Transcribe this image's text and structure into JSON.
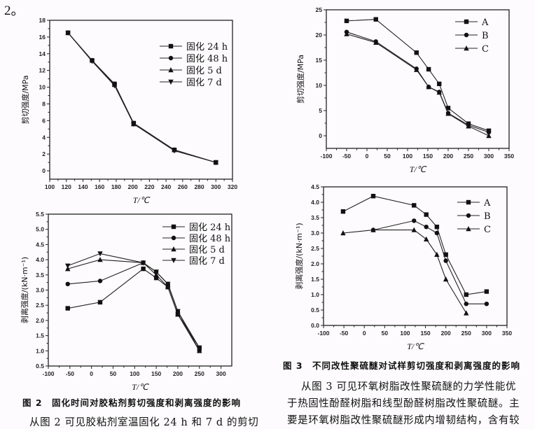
{
  "page_fragment": "2。",
  "figure2": {
    "caption": "图 2　固化时间对胶粘剂剪切强度和剥离强度的影响"
  },
  "figure3": {
    "caption": "图 3　不同改性聚硫醚对试样剪切强度和剥离强度的影响"
  },
  "body_text": {
    "left_line1": "从图 2 可见胶粘剂室温固化 24 h 和 7 d 的剪切",
    "right_line1": "从图 3 可见环氧树脂改性聚硫醚的力学性能优",
    "right_line2": "于热固性酚醛树脂和线型酚醛树脂改性聚硫醚。主",
    "right_line3": "要是环氧树脂改性聚硫醚形成内增韧结构，含有较"
  },
  "chart_data": [
    {
      "id": "fig2a",
      "type": "line",
      "title": "",
      "xlabel": "T/℃",
      "ylabel": "剪切强度/MPa",
      "xlim": [
        100,
        320
      ],
      "ylim": [
        -1,
        18
      ],
      "xticks": [
        100,
        120,
        140,
        160,
        180,
        200,
        220,
        240,
        260,
        280,
        300,
        320
      ],
      "yticks": [
        0,
        2,
        4,
        6,
        8,
        10,
        12,
        14,
        16,
        18
      ],
      "legend_position": "top-right",
      "series": [
        {
          "name": "固化 24 h",
          "marker": "square",
          "x": [
            122,
            151,
            178,
            201,
            250,
            300
          ],
          "y": [
            16.5,
            13.2,
            10.4,
            5.7,
            2.5,
            1.0
          ]
        },
        {
          "name": "固化 48 h",
          "marker": "circle",
          "x": [
            122,
            151,
            178,
            201,
            250,
            300
          ],
          "y": [
            16.5,
            13.2,
            10.3,
            5.7,
            2.5,
            1.0
          ]
        },
        {
          "name": "固化 5 d",
          "marker": "triangle-up",
          "x": [
            122,
            151,
            178,
            201,
            250,
            300
          ],
          "y": [
            16.5,
            13.2,
            10.3,
            5.6,
            2.5,
            1.0
          ]
        },
        {
          "name": "固化 7 d",
          "marker": "triangle-down",
          "x": [
            122,
            151,
            178,
            201,
            250,
            300
          ],
          "y": [
            16.5,
            13.1,
            10.2,
            5.6,
            2.4,
            1.0
          ]
        }
      ]
    },
    {
      "id": "fig2b",
      "type": "line",
      "title": "",
      "xlabel": "T/℃",
      "ylabel": "剥离强度/(kN·m⁻¹)",
      "xlim": [
        -100,
        325
      ],
      "ylim": [
        0.5,
        5.5
      ],
      "xticks": [
        -100,
        -50,
        0,
        50,
        100,
        150,
        200,
        250,
        300
      ],
      "yticks": [
        0.5,
        1.0,
        1.5,
        2.0,
        2.5,
        3.0,
        3.5,
        4.0,
        4.5,
        5.0,
        5.5
      ],
      "legend_position": "top-right",
      "series": [
        {
          "name": "固化 24 h",
          "marker": "square",
          "x": [
            -55,
            20,
            120,
            150,
            177,
            200,
            250
          ],
          "y": [
            2.4,
            2.6,
            3.7,
            3.4,
            3.1,
            2.2,
            1.1
          ]
        },
        {
          "name": "固化 48 h",
          "marker": "circle",
          "x": [
            -55,
            20,
            120,
            150,
            177,
            200,
            250
          ],
          "y": [
            3.2,
            3.3,
            3.9,
            3.6,
            3.2,
            2.3,
            1.0
          ]
        },
        {
          "name": "固化 5 d",
          "marker": "triangle-up",
          "x": [
            -55,
            20,
            120,
            150,
            177,
            200,
            250
          ],
          "y": [
            3.7,
            4.0,
            3.9,
            3.5,
            3.1,
            2.2,
            1.0
          ]
        },
        {
          "name": "固化 7 d",
          "marker": "triangle-down",
          "x": [
            -55,
            20,
            120,
            150,
            177,
            200,
            250
          ],
          "y": [
            3.8,
            4.2,
            3.9,
            3.6,
            3.2,
            2.3,
            1.1
          ]
        }
      ]
    },
    {
      "id": "fig3a",
      "type": "line",
      "title": "",
      "xlabel": "T/℃",
      "ylabel": "剪切强度/MPa",
      "xlim": [
        -100,
        350
      ],
      "ylim": [
        -2.5,
        25
      ],
      "xticks": [
        -100,
        -50,
        0,
        50,
        100,
        150,
        200,
        250,
        300,
        350
      ],
      "yticks": [
        0,
        5,
        10,
        15,
        20,
        25
      ],
      "legend_position": "top-right",
      "series": [
        {
          "name": "A",
          "marker": "square",
          "x": [
            -50,
            22,
            122,
            152,
            178,
            200,
            250,
            300
          ],
          "y": [
            22.8,
            23.1,
            16.5,
            13.2,
            10.3,
            5.5,
            2.4,
            1.0
          ]
        },
        {
          "name": "B",
          "marker": "circle",
          "x": [
            -50,
            22,
            122,
            152,
            178,
            200,
            250,
            300
          ],
          "y": [
            20.6,
            18.7,
            13.3,
            9.7,
            8.7,
            4.5,
            2.1,
            0.7
          ]
        },
        {
          "name": "C",
          "marker": "triangle-up",
          "x": [
            -50,
            22,
            122,
            152,
            178,
            200,
            250,
            300
          ],
          "y": [
            20.2,
            18.5,
            13.1,
            9.7,
            8.6,
            4.4,
            1.9,
            0.0
          ]
        }
      ]
    },
    {
      "id": "fig3b",
      "type": "line",
      "title": "",
      "xlabel": "T/℃",
      "ylabel": "剥离强度/(kN·m⁻¹)",
      "xlim": [
        -100,
        350
      ],
      "ylim": [
        0.0,
        4.5
      ],
      "xticks": [
        -100,
        -50,
        0,
        50,
        100,
        150,
        200,
        250,
        300,
        350
      ],
      "yticks": [
        0.0,
        0.5,
        1.0,
        1.5,
        2.0,
        2.5,
        3.0,
        3.5,
        4.0,
        4.5
      ],
      "legend_position": "top-right",
      "series": [
        {
          "name": "A",
          "marker": "square",
          "x": [
            -52,
            22,
            122,
            152,
            178,
            200,
            250,
            300
          ],
          "y": [
            3.7,
            4.2,
            3.9,
            3.6,
            3.2,
            2.3,
            1.0,
            1.1
          ]
        },
        {
          "name": "B",
          "marker": "circle",
          "x": [
            22,
            122,
            152,
            178,
            200,
            250,
            300
          ],
          "y": [
            3.1,
            3.4,
            3.2,
            3.0,
            2.1,
            0.7,
            0.7
          ]
        },
        {
          "name": "C",
          "marker": "triangle-up",
          "x": [
            -52,
            22,
            122,
            152,
            178,
            200,
            250
          ],
          "y": [
            3.0,
            3.1,
            3.1,
            2.8,
            2.3,
            1.5,
            0.4
          ]
        }
      ]
    }
  ]
}
